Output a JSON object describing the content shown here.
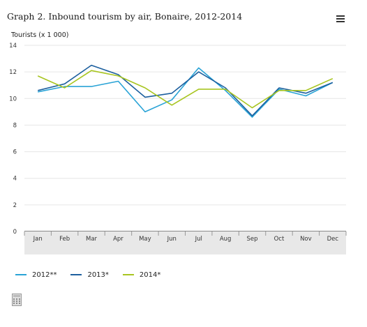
{
  "title": "Graph 2. Inbound tourism by air, Bonaire, 2012-2014",
  "menu_icon": "hamburger-menu-icon",
  "export_icon": "calculator-icon",
  "chart_data": {
    "type": "line",
    "title": "Graph 2. Inbound tourism by air, Bonaire, 2012-2014",
    "xlabel": "",
    "ylabel": "Tourists (x 1 000)",
    "ylim": [
      0,
      14
    ],
    "yticks": [
      "0",
      "2",
      "4",
      "6",
      "8",
      "10",
      "12",
      "14"
    ],
    "grid": true,
    "legend_position": "bottom-left",
    "categories": [
      "Jan",
      "Feb",
      "Mar",
      "Apr",
      "May",
      "Jun",
      "Jul",
      "Aug",
      "Sep",
      "Oct",
      "Nov",
      "Dec"
    ],
    "series": [
      {
        "name": "2012**",
        "color": "#29a3d6",
        "values": [
          10.5,
          10.9,
          10.9,
          11.3,
          9.0,
          9.9,
          12.3,
          10.6,
          8.6,
          10.7,
          10.2,
          11.2
        ]
      },
      {
        "name": "2013*",
        "color": "#1c5f9e",
        "values": [
          10.6,
          11.1,
          12.5,
          11.8,
          10.1,
          10.4,
          12.0,
          10.8,
          8.7,
          10.8,
          10.4,
          11.2
        ]
      },
      {
        "name": "2014*",
        "color": "#a8c520",
        "values": [
          11.7,
          10.8,
          12.1,
          11.7,
          10.8,
          9.5,
          10.7,
          10.7,
          9.3,
          10.6,
          10.6,
          11.5
        ]
      }
    ]
  }
}
